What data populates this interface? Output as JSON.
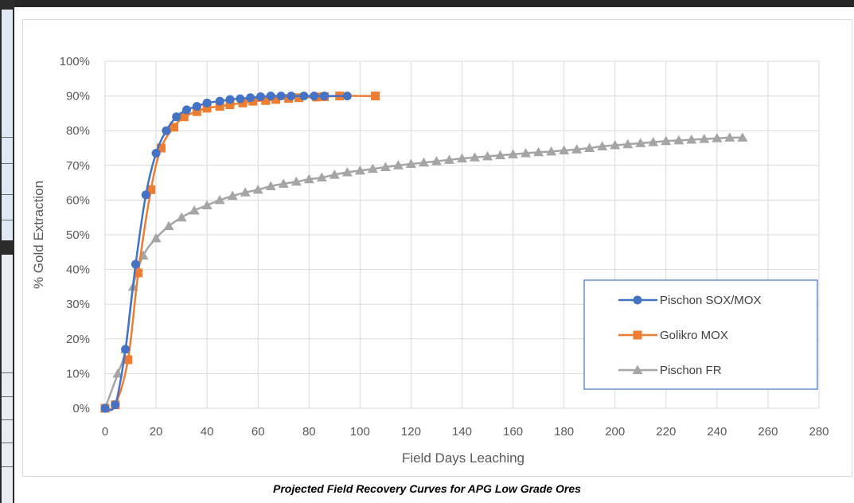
{
  "caption": "Projected Field Recovery Curves for APG Low Grade Ores",
  "chart_data": {
    "type": "scatter",
    "xlabel": "Field Days Leaching",
    "ylabel": "% Gold Extraction",
    "xlim": [
      0,
      280
    ],
    "ylim": [
      0,
      100
    ],
    "x_ticks": [
      "0",
      "20",
      "40",
      "60",
      "80",
      "100",
      "120",
      "140",
      "160",
      "180",
      "200",
      "220",
      "240",
      "260",
      "280"
    ],
    "y_ticks": [
      "0%",
      "10%",
      "20%",
      "30%",
      "40%",
      "50%",
      "60%",
      "70%",
      "80%",
      "90%",
      "100%"
    ],
    "grid": true,
    "legend_position": "right",
    "series": [
      {
        "name": "Pischon SOX/MOX",
        "color": "#4472c4",
        "marker": "circle",
        "x": [
          0,
          4,
          8,
          12,
          16,
          20,
          24,
          28,
          32,
          36,
          40,
          45,
          49,
          53,
          57,
          61,
          65,
          69,
          73,
          78,
          82,
          86,
          95
        ],
        "y": [
          0,
          1,
          17,
          41.5,
          61.5,
          73.5,
          80,
          84,
          86,
          87,
          88,
          88.5,
          89,
          89.2,
          89.5,
          89.8,
          90,
          90,
          90,
          90,
          90,
          90,
          90
        ]
      },
      {
        "name": "Golikro MOX",
        "color": "#ed7d31",
        "marker": "square",
        "x": [
          0,
          4,
          9,
          13,
          18,
          22,
          27,
          31,
          36,
          40,
          45,
          49,
          54,
          58,
          63,
          67,
          72,
          76,
          83,
          86,
          92,
          106
        ],
        "y": [
          0,
          1,
          14,
          39,
          63,
          75,
          81,
          84,
          85.5,
          86.5,
          87,
          87.5,
          88,
          88.5,
          88.7,
          89,
          89.3,
          89.5,
          89.7,
          89.8,
          90,
          90
        ]
      },
      {
        "name": "Pischon FR",
        "color": "#a5a5a5",
        "marker": "triangle",
        "x": [
          0,
          5,
          8,
          11,
          15,
          20,
          25,
          30,
          35,
          40,
          45,
          50,
          55,
          60,
          65,
          70,
          75,
          80,
          85,
          90,
          95,
          100,
          105,
          110,
          115,
          120,
          125,
          130,
          135,
          140,
          145,
          150,
          155,
          160,
          165,
          170,
          175,
          180,
          185,
          190,
          195,
          200,
          205,
          210,
          215,
          220,
          225,
          230,
          235,
          240,
          245,
          250
        ],
        "y": [
          0,
          10,
          17,
          35,
          44,
          49,
          52.5,
          55,
          57,
          58.5,
          60,
          61.2,
          62.2,
          63,
          64,
          64.7,
          65.3,
          66,
          66.5,
          67.3,
          68,
          68.5,
          69,
          69.5,
          70,
          70.4,
          70.8,
          71.2,
          71.6,
          72,
          72.3,
          72.6,
          72.9,
          73.2,
          73.5,
          73.8,
          74,
          74.3,
          74.6,
          75,
          75.5,
          75.8,
          76.1,
          76.4,
          76.7,
          77,
          77.2,
          77.4,
          77.6,
          77.8,
          78,
          78
        ]
      }
    ]
  }
}
